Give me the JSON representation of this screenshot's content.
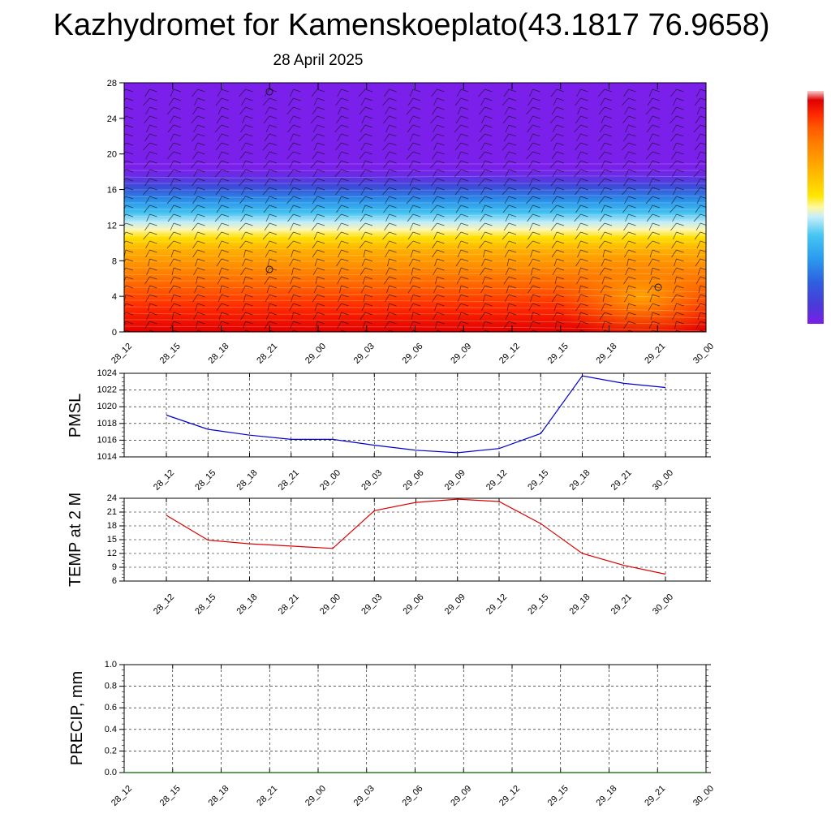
{
  "title": "Kazhydromet for Kamenskoeplato(43.1817 76.9658)",
  "subtitle": "28 April 2025",
  "colors": {
    "pmsl_line": "#0000cc",
    "temp_line": "#dd0000",
    "precip_line": "#006400",
    "grid": "#000000"
  },
  "chart_data": [
    {
      "type": "heatmap",
      "name": "cross-section",
      "x": [
        "28_12",
        "28_15",
        "28_18",
        "28_21",
        "29_00",
        "29_03",
        "29_06",
        "29_09",
        "29_12",
        "29_15",
        "29_18",
        "29_21",
        "30_00"
      ],
      "yticks": [
        0,
        4,
        8,
        12,
        16,
        20,
        24,
        28
      ],
      "ylim": [
        0,
        28
      ],
      "colorbar": [
        "#7a1fe8",
        "#4a3ad8",
        "#2f60e0",
        "#2a9bf0",
        "#45c6f2",
        "#c8eefa",
        "#fff8a0",
        "#ffe600",
        "#ffc000",
        "#ffa000",
        "#ff8000",
        "#ff5a00",
        "#ff2800",
        "#e00000",
        "#f8d0d0"
      ],
      "legend_position": "right"
    },
    {
      "type": "line",
      "name": "pmsl",
      "ylabel": "PMSL",
      "x": [
        "28_12",
        "28_15",
        "28_18",
        "28_21",
        "29_00",
        "29_03",
        "29_06",
        "29_09",
        "29_12",
        "29_15",
        "29_18",
        "29_21",
        "30_00"
      ],
      "values": [
        1019.0,
        1017.3,
        1016.6,
        1016.1,
        1016.1,
        1015.4,
        1014.8,
        1014.5,
        1015.0,
        1016.8,
        1023.7,
        1022.8,
        1022.3
      ],
      "yticks": [
        1014,
        1016,
        1018,
        1020,
        1022,
        1024
      ],
      "ylim": [
        1014,
        1024
      ],
      "grid": true
    },
    {
      "type": "line",
      "name": "temp",
      "ylabel": "TEMP at 2 M",
      "x": [
        "28_12",
        "28_15",
        "28_18",
        "28_21",
        "29_00",
        "29_03",
        "29_06",
        "29_09",
        "29_12",
        "29_15",
        "29_18",
        "29_21",
        "30_00"
      ],
      "values": [
        20.3,
        14.9,
        14.1,
        13.6,
        13.1,
        21.3,
        23.1,
        23.8,
        23.3,
        18.5,
        12.0,
        9.4,
        7.5
      ],
      "yticks": [
        6,
        9,
        12,
        15,
        18,
        21,
        24
      ],
      "ylim": [
        6,
        24
      ],
      "grid": true
    },
    {
      "type": "line",
      "name": "precip",
      "ylabel": "PRECIP, mm",
      "x": [
        "28_12",
        "28_15",
        "28_18",
        "28_21",
        "29_00",
        "29_03",
        "29_06",
        "29_09",
        "29_12",
        "29_15",
        "29_18",
        "29_21",
        "30_00"
      ],
      "values": [
        0,
        0,
        0,
        0,
        0,
        0,
        0,
        0,
        0,
        0,
        0,
        0,
        0
      ],
      "yticks": [
        "0.0",
        "0.2",
        "0.4",
        "0.6",
        "0.8",
        "1.0"
      ],
      "ylim": [
        0,
        1
      ],
      "grid": true
    }
  ]
}
